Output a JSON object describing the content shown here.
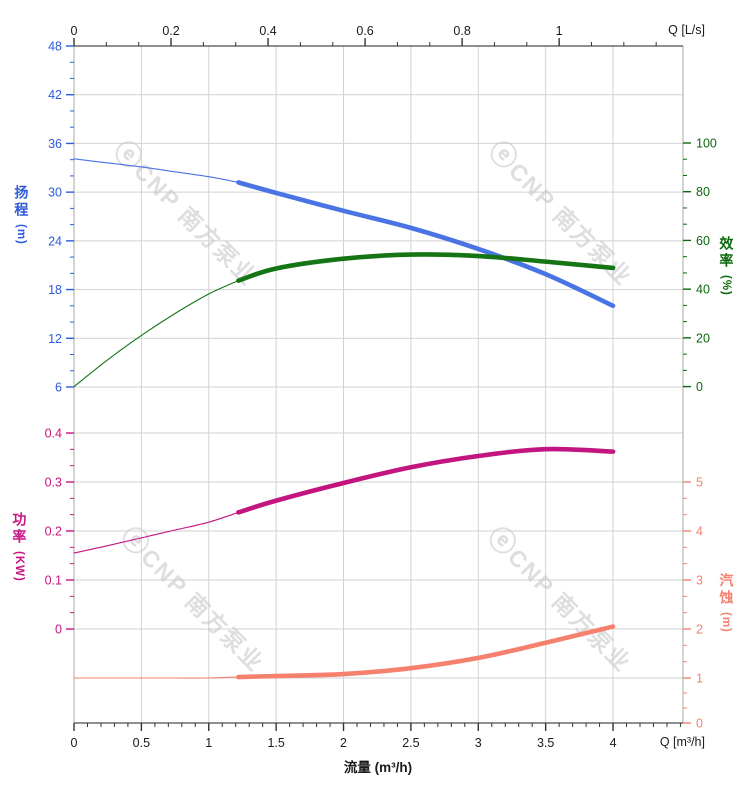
{
  "watermark": {
    "logo": "ⓔ",
    "text": "CNP 南方泵业",
    "color": "#c9c9ce"
  },
  "axes": {
    "flow_top": {
      "unit_label": "Q [L/s]",
      "majors": [
        "0",
        "0.2",
        "0.4",
        "0.6",
        "0.8",
        "1"
      ],
      "major_values": [
        0,
        0.2,
        0.4,
        0.6,
        0.8,
        1
      ],
      "range": [
        0,
        1.253
      ],
      "tick_color": "#333333",
      "label_color": "#1a1a1a"
    },
    "flow_bottom": {
      "unit_label": "Q [m³/h]",
      "axis_title": "流量 (m³/h)",
      "majors": [
        "0",
        "0.5",
        "1",
        "1.5",
        "2",
        "2.5",
        "3",
        "3.5",
        "4"
      ],
      "major_values": [
        0,
        0.5,
        1,
        1.5,
        2,
        2.5,
        3,
        3.5,
        4
      ],
      "range": [
        0,
        4.52
      ],
      "tick_color": "#333333",
      "label_color": "#1a1a1a"
    },
    "head": {
      "name": "扬程",
      "unit": "(m)",
      "majors": [
        "48",
        "42",
        "36",
        "30",
        "24",
        "18",
        "12",
        "6"
      ],
      "major_values": [
        48,
        42,
        36,
        30,
        24,
        18,
        12,
        6
      ],
      "range": [
        6,
        48
      ],
      "color": "#2d5bdc"
    },
    "efficiency": {
      "name": "效率",
      "unit": "(%)",
      "majors": [
        "100",
        "80",
        "60",
        "40",
        "20",
        "0"
      ],
      "major_values": [
        100,
        80,
        60,
        40,
        20,
        0
      ],
      "range": [
        0,
        100
      ],
      "color": "#0d680d"
    },
    "power": {
      "name": "功率",
      "unit": "(KW)",
      "majors": [
        "0.4",
        "0.3",
        "0.2",
        "0.1",
        "0"
      ],
      "major_values": [
        0.4,
        0.3,
        0.2,
        0.1,
        0
      ],
      "range": [
        0,
        0.4
      ],
      "color": "#c81583"
    },
    "npsh": {
      "name": "汽蚀",
      "unit": "(m)",
      "majors": [
        "5",
        "4",
        "3",
        "2",
        "1",
        "0"
      ],
      "major_values": [
        5,
        4,
        3,
        2,
        1,
        0
      ],
      "range": [
        0,
        5
      ],
      "color": "#f5806e"
    }
  },
  "chart_data": [
    {
      "type": "line",
      "name": "head",
      "axis": "head",
      "x": [
        0,
        0.25,
        0.5,
        0.75,
        1.0,
        1.22,
        1.5,
        2.0,
        2.5,
        3.0,
        3.5,
        4.0
      ],
      "values": [
        34.1,
        33.6,
        33.1,
        32.5,
        31.9,
        31.2,
        29.9,
        27.7,
        25.6,
        23.0,
        19.9,
        16.0
      ],
      "color": "#4a74e4",
      "thick_from": 1.22
    },
    {
      "type": "line",
      "name": "efficiency",
      "axis": "efficiency",
      "x": [
        0,
        0.25,
        0.5,
        0.75,
        1.0,
        1.22,
        1.5,
        2.0,
        2.5,
        3.0,
        3.5,
        4.0
      ],
      "values": [
        0,
        11,
        21,
        30,
        38,
        43.5,
        48.5,
        52.5,
        54.2,
        53.6,
        51.3,
        48.7
      ],
      "color": "#157515",
      "thick_from": 1.22
    },
    {
      "type": "line",
      "name": "power",
      "axis": "power",
      "x": [
        0,
        0.25,
        0.5,
        0.75,
        1.0,
        1.22,
        1.5,
        2.0,
        2.5,
        3.0,
        3.5,
        4.0
      ],
      "values": [
        0.155,
        0.17,
        0.186,
        0.202,
        0.218,
        0.238,
        0.262,
        0.298,
        0.33,
        0.353,
        0.367,
        0.362
      ],
      "color": "#c2157f",
      "thick_from": 1.22
    },
    {
      "type": "line",
      "name": "npsh",
      "axis": "npsh",
      "x": [
        0,
        0.25,
        0.5,
        0.75,
        1.0,
        1.22,
        1.5,
        2.0,
        2.5,
        3.0,
        3.5,
        4.0
      ],
      "values": [
        1.0,
        1.0,
        1.0,
        1.0,
        1.0,
        1.02,
        1.04,
        1.08,
        1.2,
        1.41,
        1.72,
        2.05
      ],
      "color": "#f5806e",
      "thick_from": 1.22
    }
  ]
}
